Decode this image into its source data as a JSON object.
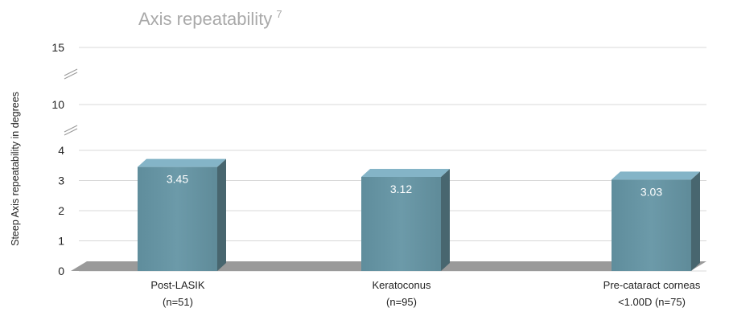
{
  "chart_data": {
    "type": "bar",
    "title": "Axis repeatability",
    "title_superscript": "7",
    "ylabel": "Steep Axis repeatability in degrees",
    "categories": [
      {
        "line1": "Post-LASIK",
        "line2": "(n=51)"
      },
      {
        "line1": "Keratoconus",
        "line2": "(n=95)"
      },
      {
        "line1": "Pre-cataract corneas",
        "line2": "<1.00D (n=75)"
      }
    ],
    "series": [
      {
        "values": [
          3.45,
          3.12,
          3.03
        ],
        "labels": [
          "3.45",
          "3.12",
          "3.03"
        ]
      }
    ],
    "y_ticks": [
      "0",
      "1",
      "2",
      "3",
      "4",
      "10",
      "15"
    ],
    "y_axis_broken": true,
    "grid": true,
    "colors": {
      "bar_front": "#6a97a6",
      "bar_top": "#84b4c7",
      "bar_side": "#48666f",
      "floor": "#9a9a9a",
      "title": "#a9a9a9"
    }
  }
}
